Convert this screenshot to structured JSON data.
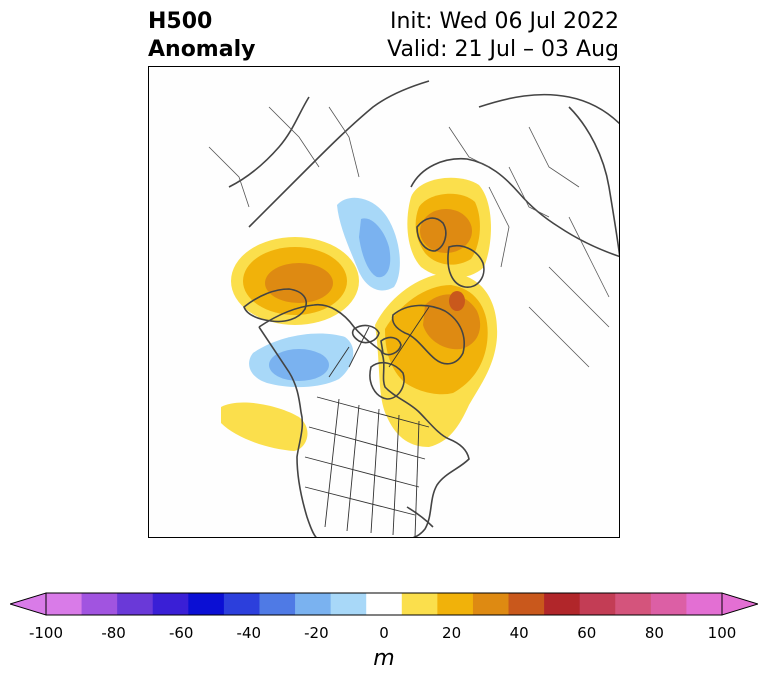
{
  "header": {
    "title_line1": "H500",
    "title_line2": "Anomaly",
    "init": "Init: Wed 06 Jul 2022",
    "valid": "Valid: 21 Jul – 03 Aug"
  },
  "map": {
    "projection": "polar-stereographic",
    "region": "North America / North Atlantic / Arctic",
    "anomalies": [
      {
        "name": "positive-anomaly-alaska-bering",
        "value": 30
      },
      {
        "name": "positive-anomaly-greenland",
        "value": 50
      },
      {
        "name": "positive-anomaly-scandinavia",
        "value": 40
      },
      {
        "name": "positive-anomaly-hudson-bay-labrador",
        "value": 20
      },
      {
        "name": "positive-anomaly-northeast-pacific",
        "value": 10
      },
      {
        "name": "negative-anomaly-arctic-ocean",
        "value": -30
      },
      {
        "name": "negative-anomaly-gulf-of-alaska",
        "value": -30
      }
    ]
  },
  "colorbar": {
    "units": "m",
    "ticks": [
      "-100",
      "-80",
      "-60",
      "-40",
      "-20",
      "0",
      "20",
      "40",
      "60",
      "80",
      "100"
    ],
    "levels": [
      -100,
      -90,
      -80,
      -70,
      -60,
      -50,
      -40,
      -30,
      -20,
      -10,
      10,
      20,
      30,
      40,
      50,
      60,
      70,
      80,
      90,
      100
    ],
    "colors": [
      "#d97be8",
      "#a154e0",
      "#6a39d8",
      "#3a1fd6",
      "#0b0fd4",
      "#2c3fdc",
      "#4f7ae5",
      "#7ab2f0",
      "#a8d8f8",
      "#ffffff",
      "#fbdf4c",
      "#f1b20a",
      "#de8a12",
      "#c9581c",
      "#b1262a",
      "#c33d55",
      "#d4547c",
      "#dc5fa5",
      "#e36fd3"
    ],
    "extend_low_color": "#d97be8",
    "extend_high_color": "#e36fd3"
  }
}
